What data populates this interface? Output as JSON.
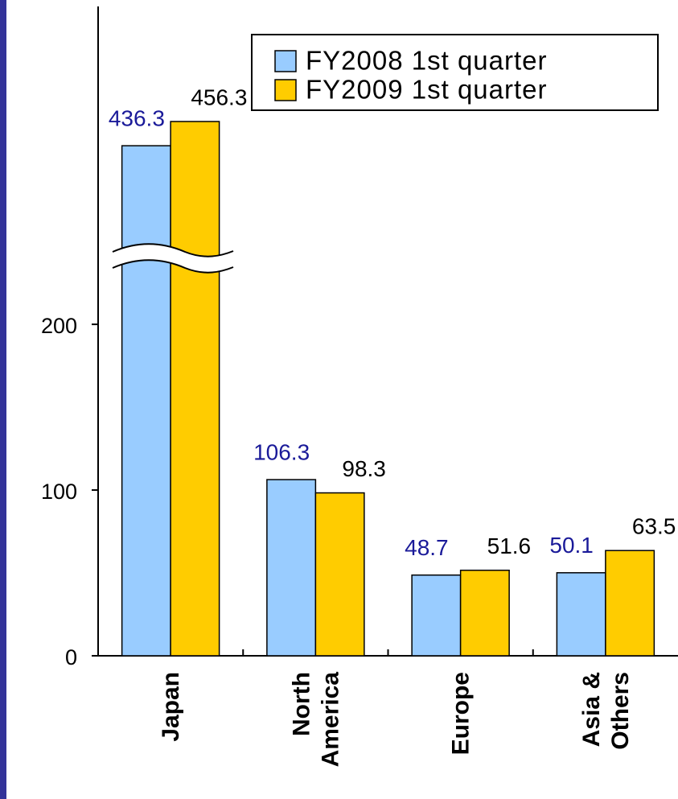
{
  "chart_data": {
    "type": "bar",
    "categories": [
      [
        "Japan"
      ],
      [
        "North",
        "America"
      ],
      [
        "Europe"
      ],
      [
        "Asia &",
        "Others"
      ]
    ],
    "series": [
      {
        "name": "FY2008 1st quarter",
        "color": "#99ccff",
        "label_color": "#1a1a99",
        "values": [
          436.3,
          106.3,
          48.7,
          50.1
        ]
      },
      {
        "name": "FY2009 1st quarter",
        "color": "#ffcc00",
        "label_color": "#000000",
        "values": [
          456.3,
          98.3,
          51.6,
          63.5
        ]
      }
    ],
    "ylim": [
      0,
      550
    ],
    "ybreak": [
      235,
      350
    ],
    "yticks": [
      0,
      100,
      200
    ],
    "legend": "upper right"
  }
}
